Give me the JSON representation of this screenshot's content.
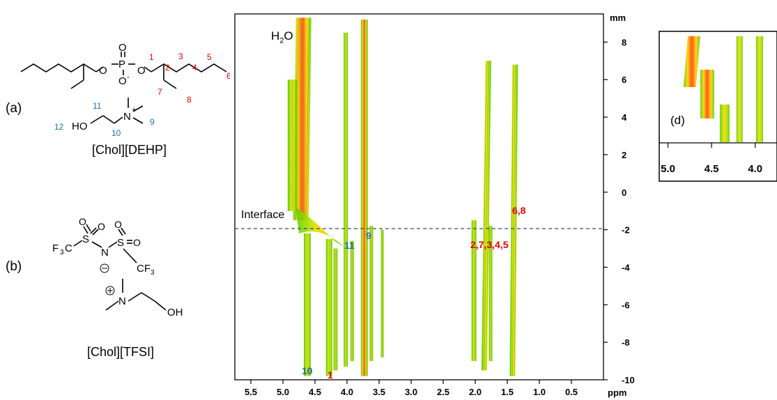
{
  "panels": {
    "a": "(a)",
    "b": "(b)",
    "d": "(d)"
  },
  "compounds": {
    "chol_dehp": "[Chol][DEHP]",
    "chol_tfsi": "[Chol][TFSI]"
  },
  "structure_a": {
    "atoms": {
      "O1": "O",
      "O2": "O",
      "O3": "O",
      "P": "P",
      "O4": "O",
      "minus": "-",
      "N": "N",
      "plus": "+",
      "HO": "HO"
    },
    "red_numbers": [
      "1",
      "2",
      "3",
      "4",
      "5",
      "6",
      "7",
      "8"
    ],
    "blue_numbers": [
      "9",
      "10",
      "11",
      "12"
    ]
  },
  "structure_b": {
    "atoms": {
      "F3C": "F",
      "sub3a": "3",
      "Cl": "C",
      "S1": "S",
      "N": "N",
      "S2": "S",
      "CF3": "CF",
      "sub3b": "3",
      "OHb": "OH",
      "Nb": "N"
    }
  },
  "spectrum": {
    "h2o_label": "H",
    "h2o_sub": "2",
    "h2o_tail": "O",
    "interface_label": "Interface",
    "x_unit": "ppm",
    "y_unit": "mm",
    "peak_labels": {
      "p10": "10",
      "p1": "1",
      "p11": "11",
      "p9": "9",
      "p2_5": "2,7,3,4,5",
      "p68": "6,8"
    }
  },
  "chart_data": [
    {
      "type": "heatmap",
      "title": "",
      "xlabel": "ppm",
      "ylabel": "mm",
      "xlim": [
        5.75,
        0.0
      ],
      "ylim": [
        -10,
        9.5
      ],
      "x_ticks": [
        "5.5",
        "5.0",
        "4.5",
        "4.0",
        "3.5",
        "3.0",
        "2.5",
        "2.0",
        "1.5",
        "1.0",
        "0.5"
      ],
      "y_ticks": [
        "8",
        "6",
        "4",
        "2",
        "0",
        "-2",
        "-4",
        "-6",
        "-8",
        "-10"
      ],
      "interface_y": -1.7,
      "peaks": [
        {
          "label": "10",
          "shift": 4.6
        },
        {
          "label": "1",
          "shift": 4.27
        },
        {
          "label": "11",
          "shift": 4.0
        },
        {
          "label": "9",
          "shift": 3.72
        },
        {
          "label": "2,7,3,4,5",
          "shift": 1.85
        },
        {
          "label": "6,8",
          "shift": 1.42
        },
        {
          "label": "H2O",
          "shift": 4.7
        }
      ]
    },
    {
      "type": "heatmap",
      "title": "",
      "x_ticks": [
        "5.0",
        "4.5",
        "4.0"
      ],
      "xlim": [
        5.1,
        3.75
      ]
    }
  ]
}
